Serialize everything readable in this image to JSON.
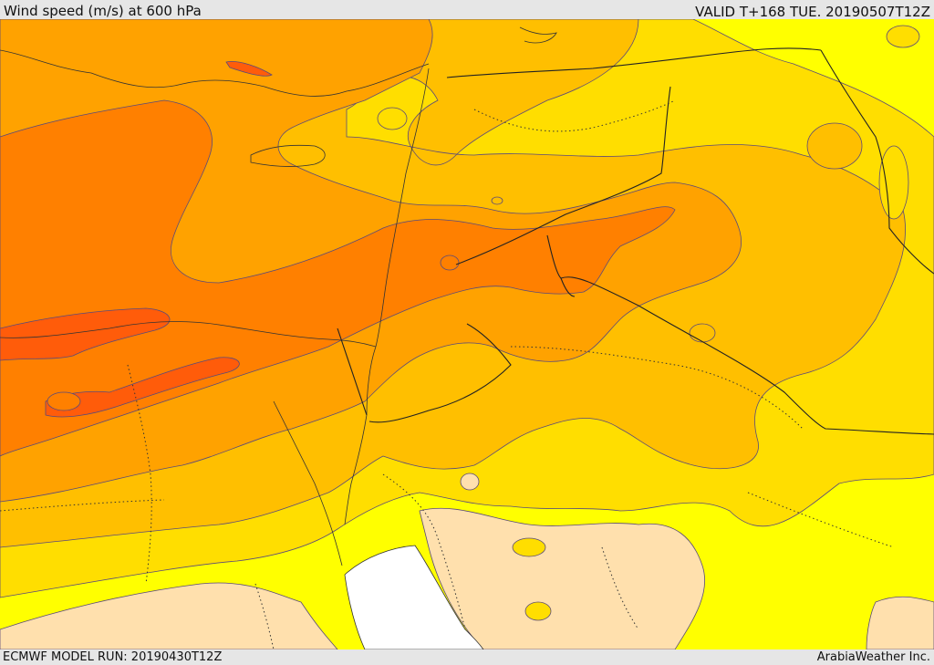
{
  "header": {
    "title": "Wind speed (m/s) at 600 hPa",
    "valid": "VALID T+168 TUE. 20190507T12Z"
  },
  "footer": {
    "model_run": "ECMWF MODEL RUN: 20190430T12Z",
    "credit": "ArabiaWeather Inc."
  },
  "colors": {
    "band_lowest": "#ffe0ad",
    "band_low": "#ffff00",
    "band_mid_low": "#ffde00",
    "band_mid": "#ffbf00",
    "band_mid_high": "#ffa200",
    "band_high": "#ff8000",
    "band_highest": "#ff5c0a",
    "sea": "#ffffff"
  }
}
